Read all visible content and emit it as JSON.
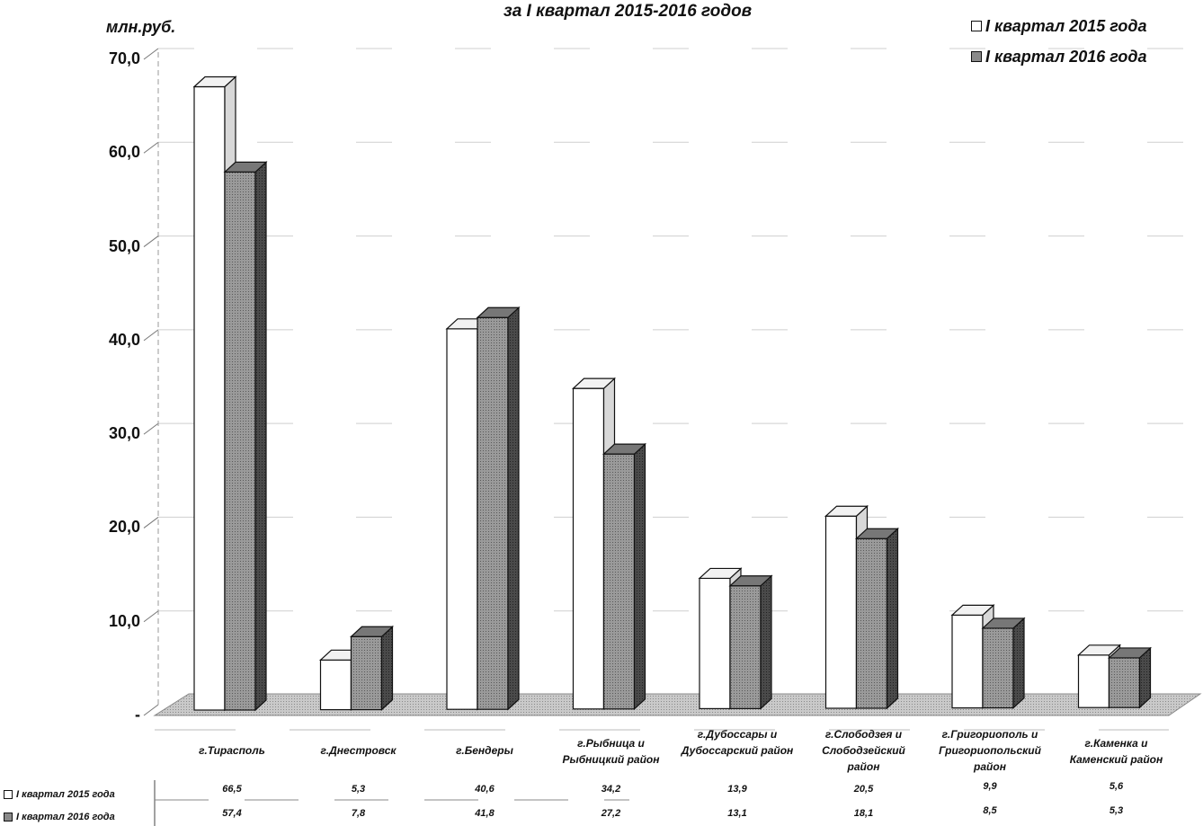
{
  "chart_data": {
    "type": "bar",
    "title": "за I квартал 2015-2016 годов",
    "ylabel": "млн.руб.",
    "ylim": [
      0,
      70
    ],
    "yticks": [
      "-",
      "10,0",
      "20,0",
      "30,0",
      "40,0",
      "50,0",
      "60,0",
      "70,0"
    ],
    "categories": [
      "г.Тирасполь",
      "г.Днестровск",
      "г.Бендеры",
      "г.Рыбница и Рыбницкий район",
      "г.Дубоссары и Дубоссарский район",
      "г.Слободзея и Слободзейский район",
      "г.Григориополь и Григориопольский район",
      "г.Каменка и Каменский район"
    ],
    "series": [
      {
        "name": "I квартал 2015 года",
        "color": "#ffffff",
        "values": [
          66.5,
          5.3,
          40.6,
          34.2,
          13.9,
          20.5,
          9.9,
          5.6
        ],
        "labels": [
          "66,5",
          "5,3",
          "40,6",
          "34,2",
          "13,9",
          "20,5",
          "9,9",
          "5,6"
        ]
      },
      {
        "name": "I квартал 2016 года",
        "color": "#8a8a8a",
        "values": [
          57.4,
          7.8,
          41.8,
          27.2,
          13.1,
          18.1,
          8.5,
          5.3
        ],
        "labels": [
          "57,4",
          "7,8",
          "41,8",
          "27,2",
          "13,1",
          "18,1",
          "8,5",
          "5,3"
        ]
      }
    ],
    "legend_position": "top-right",
    "data_table": true
  },
  "legend": {
    "item_2015": "I квартал 2015 года",
    "item_2016": "I квартал 2016 года"
  }
}
